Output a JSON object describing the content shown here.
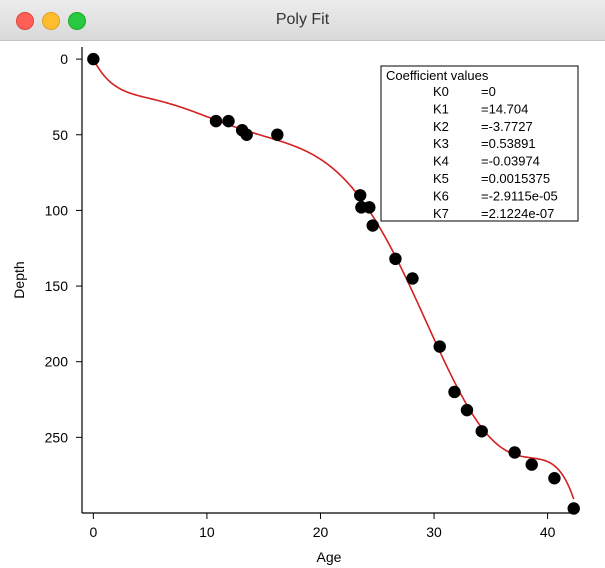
{
  "window": {
    "title": "Poly Fit",
    "buttons": [
      "close",
      "minimize",
      "maximize"
    ]
  },
  "colors": {
    "fit_line": "#d42020",
    "points": "#000000"
  },
  "chart_data": {
    "type": "scatter",
    "xlabel": "Age",
    "ylabel": "Depth",
    "xlim": [
      -1,
      42.5
    ],
    "ylim": [
      300,
      -8
    ],
    "y_reversed": true,
    "x_ticks": [
      0,
      10,
      20,
      30,
      40
    ],
    "y_ticks": [
      0,
      50,
      100,
      150,
      200,
      250
    ],
    "grid": false,
    "series": [
      {
        "kind": "points",
        "x": [
          0,
          10.8,
          11.9,
          13.1,
          13.5,
          16.2,
          23.5,
          23.6,
          24.3,
          24.6,
          26.6,
          28.1,
          30.5,
          31.8,
          32.9,
          34.2,
          37.1,
          38.6,
          40.6,
          42.3
        ],
        "y": [
          0,
          41,
          41,
          47,
          50,
          50,
          90,
          98,
          98,
          110,
          132,
          145,
          190,
          220,
          232,
          246,
          260,
          268,
          277,
          297
        ]
      },
      {
        "kind": "fit",
        "name": "polynomial fit",
        "coefficients": [
          0,
          14.704,
          -3.7727,
          0.53891,
          -0.03974,
          0.0015375,
          -2.9115e-05,
          2.1224e-07
        ],
        "x_range": [
          0,
          42.3
        ]
      }
    ],
    "legend": {
      "title": "Coefficient values",
      "placement": "top-right",
      "rows": [
        {
          "name": "K0",
          "value": "=0"
        },
        {
          "name": "K1",
          "value": "=14.704"
        },
        {
          "name": "K2",
          "value": "=-3.7727"
        },
        {
          "name": "K3",
          "value": "=0.53891"
        },
        {
          "name": "K4",
          "value": "=-0.03974"
        },
        {
          "name": "K5",
          "value": "=0.0015375"
        },
        {
          "name": "K6",
          "value": "=-2.9115e-05"
        },
        {
          "name": "K7",
          "value": "=2.1224e-07"
        }
      ]
    }
  }
}
